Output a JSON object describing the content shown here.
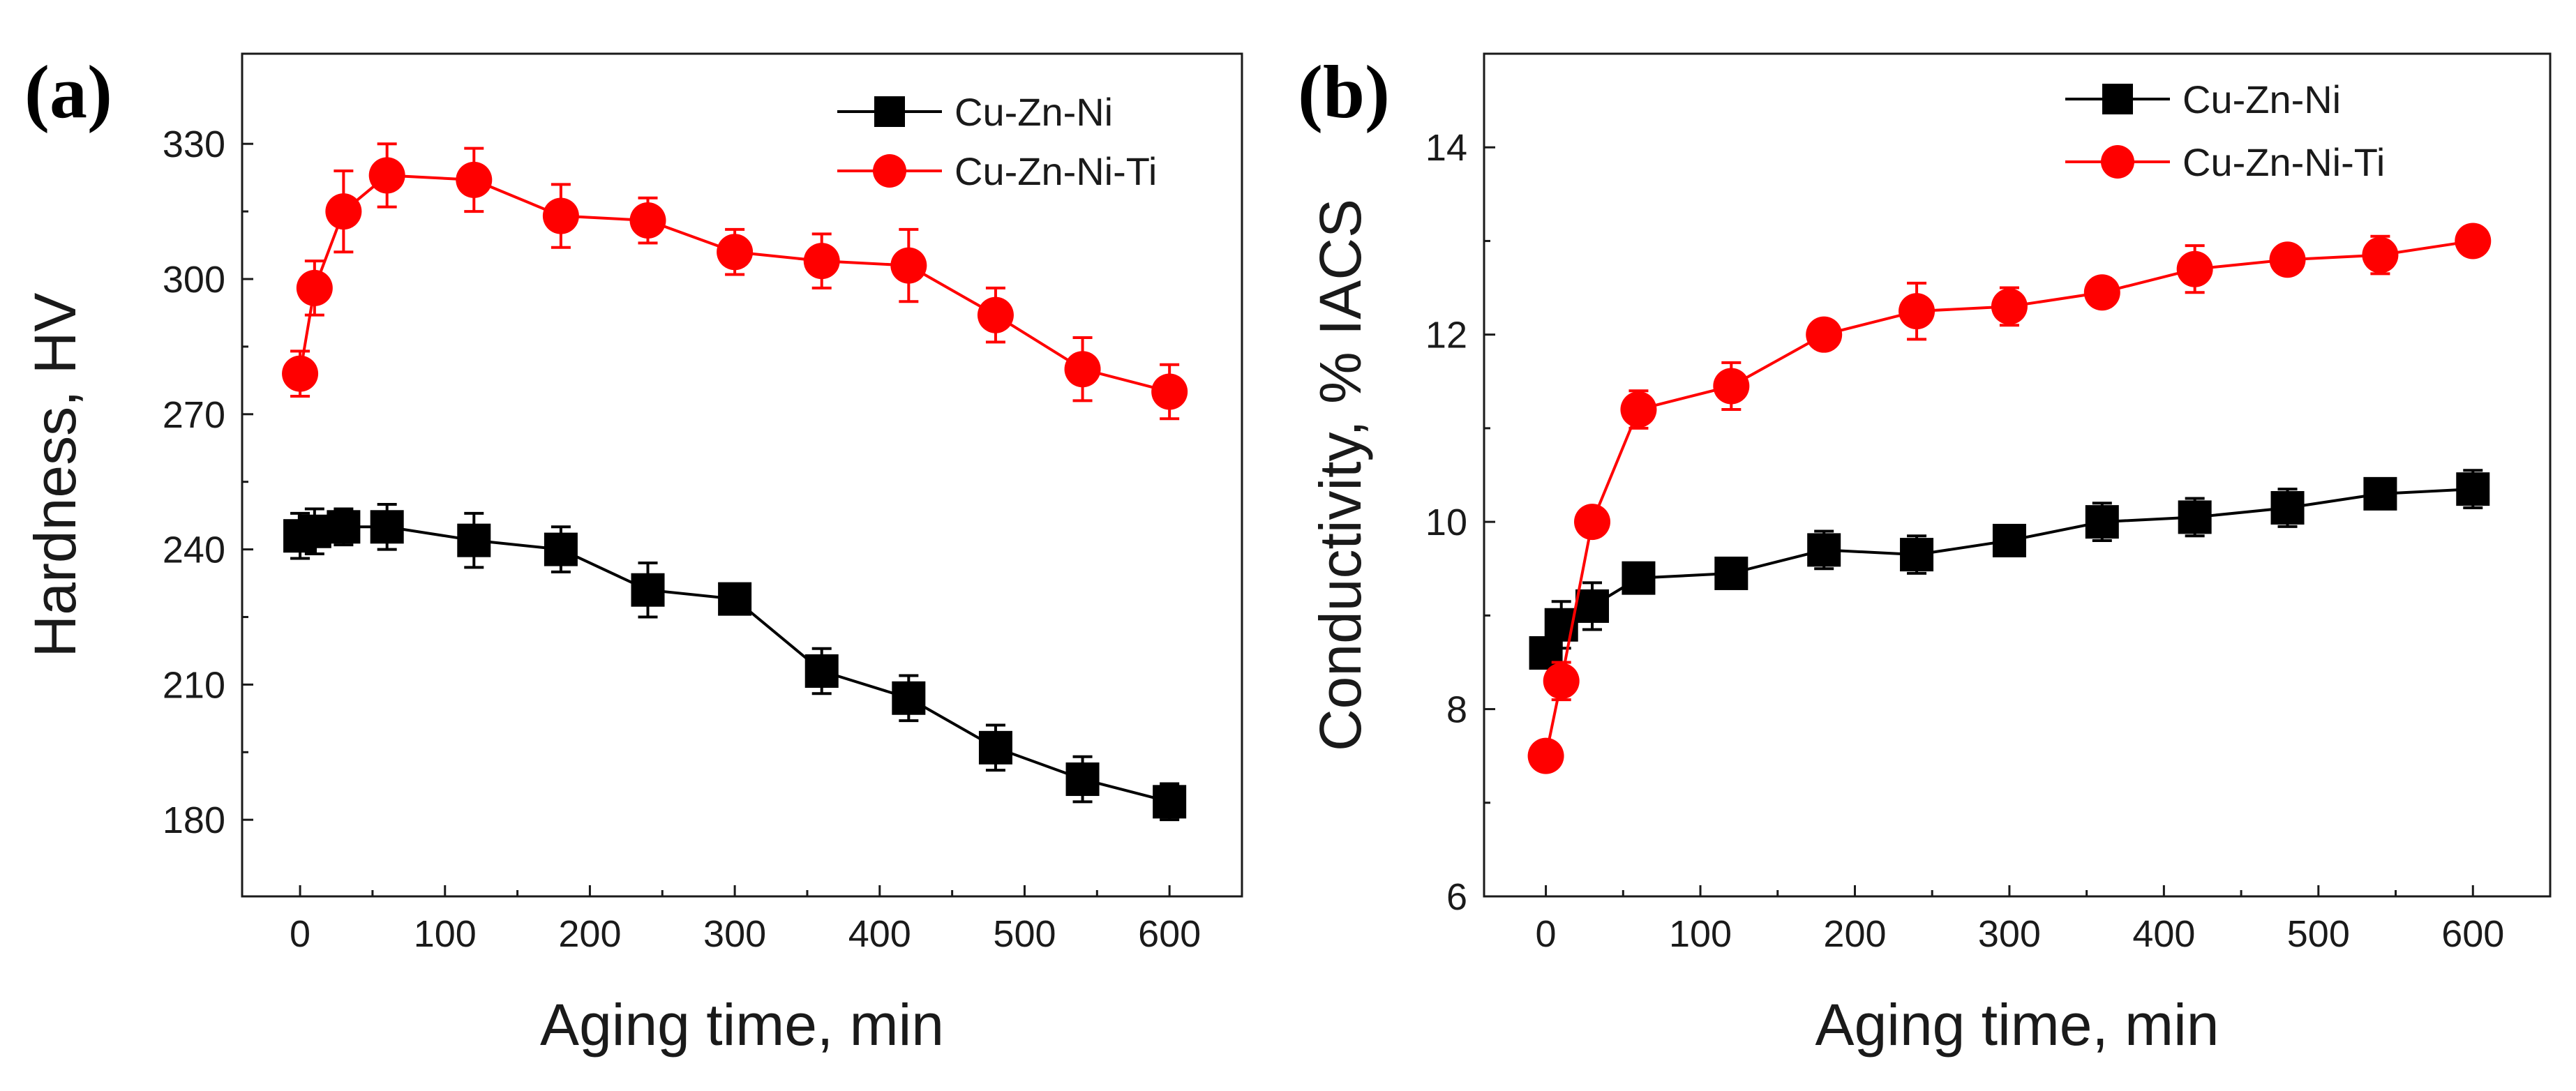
{
  "chart_data": [
    {
      "panel_label": "(a)",
      "type": "line",
      "xlabel": "Aging time, min",
      "ylabel": "Hardness, HV",
      "xlim": [
        -40,
        650
      ],
      "ylim": [
        163,
        350
      ],
      "xticks": [
        0,
        100,
        200,
        300,
        400,
        500,
        600
      ],
      "xtick_labels": [
        "0",
        "100",
        "200",
        "300",
        "400",
        "500",
        "600"
      ],
      "yticks": [
        180,
        210,
        240,
        270,
        300,
        330
      ],
      "ytick_labels": [
        "180",
        "210",
        "240",
        "270",
        "300",
        "330"
      ],
      "legend_position": "top-right",
      "series": [
        {
          "name": "Cu-Zn-Ni",
          "color": "#000000",
          "marker": "square",
          "x": [
            0,
            10,
            30,
            60,
            120,
            180,
            240,
            300,
            360,
            420,
            480,
            540,
            600
          ],
          "y": [
            243,
            244,
            245,
            245,
            242,
            240,
            231,
            229,
            213,
            207,
            196,
            189,
            184
          ],
          "error": [
            5,
            5,
            4,
            5,
            6,
            5,
            6,
            3,
            5,
            5,
            5,
            5,
            4
          ]
        },
        {
          "name": "Cu-Zn-Ni-Ti",
          "color": "#ff0000",
          "marker": "circle",
          "x": [
            0,
            10,
            30,
            60,
            120,
            180,
            240,
            300,
            360,
            420,
            480,
            540,
            600
          ],
          "y": [
            279,
            298,
            315,
            323,
            322,
            314,
            313,
            306,
            304,
            303,
            292,
            280,
            275
          ],
          "error": [
            5,
            6,
            9,
            7,
            7,
            7,
            5,
            5,
            6,
            8,
            6,
            7,
            6
          ]
        }
      ]
    },
    {
      "panel_label": "(b)",
      "type": "line",
      "xlabel": "Aging time, min",
      "ylabel": "Conductivity, % IACS",
      "xlim": [
        -40,
        650
      ],
      "ylim": [
        6,
        15
      ],
      "xticks": [
        0,
        100,
        200,
        300,
        400,
        500,
        600
      ],
      "xtick_labels": [
        "0",
        "100",
        "200",
        "300",
        "400",
        "500",
        "600"
      ],
      "yticks": [
        6,
        8,
        10,
        12,
        14
      ],
      "ytick_labels": [
        "6",
        "8",
        "10",
        "12",
        "14"
      ],
      "legend_position": "top-right",
      "series": [
        {
          "name": "Cu-Zn-Ni",
          "color": "#000000",
          "marker": "square",
          "x": [
            0,
            10,
            30,
            60,
            120,
            180,
            240,
            300,
            360,
            420,
            480,
            540,
            600
          ],
          "y": [
            8.6,
            8.9,
            9.1,
            9.4,
            9.45,
            9.7,
            9.65,
            9.8,
            10.0,
            10.05,
            10.15,
            10.3,
            10.35
          ],
          "error": [
            0.15,
            0.25,
            0.25,
            0.15,
            0.15,
            0.2,
            0.2,
            0.15,
            0.2,
            0.2,
            0.2,
            0.15,
            0.2
          ]
        },
        {
          "name": "Cu-Zn-Ni-Ti",
          "color": "#ff0000",
          "marker": "circle",
          "x": [
            0,
            10,
            30,
            60,
            120,
            180,
            240,
            300,
            360,
            420,
            480,
            540,
            600
          ],
          "y": [
            7.5,
            8.3,
            10.0,
            11.2,
            11.45,
            12.0,
            12.25,
            12.3,
            12.45,
            12.7,
            12.8,
            12.85,
            13.0
          ],
          "error": [
            0.1,
            0.2,
            0.15,
            0.2,
            0.25,
            0.15,
            0.3,
            0.2,
            0.15,
            0.25,
            0.1,
            0.2,
            0.15
          ]
        }
      ]
    }
  ]
}
